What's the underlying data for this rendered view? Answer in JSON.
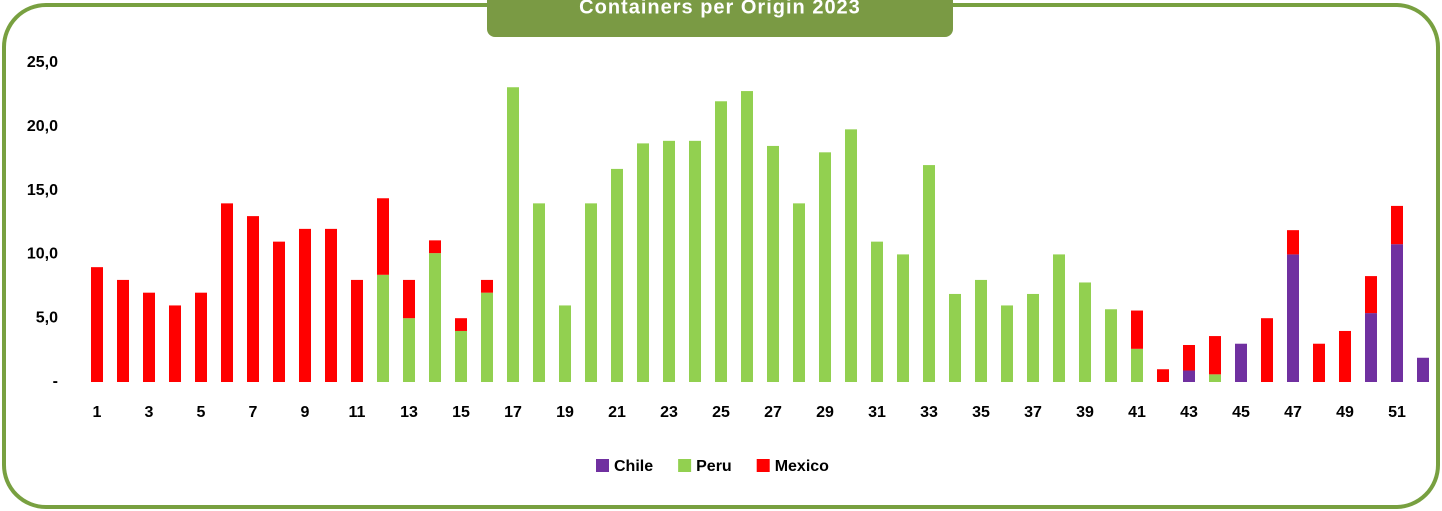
{
  "chart_data": {
    "type": "bar",
    "stacked": true,
    "title": "Containers per Origin 2023",
    "categories": [
      1,
      null,
      3,
      null,
      5,
      null,
      7,
      null,
      9,
      null,
      11,
      null,
      13,
      null,
      15,
      null,
      17,
      null,
      19,
      null,
      21,
      null,
      23,
      null,
      25,
      null,
      27,
      null,
      29,
      null,
      31,
      null,
      33,
      null,
      35,
      null,
      37,
      null,
      39,
      null,
      41,
      null,
      43,
      null,
      45,
      null,
      47,
      null,
      49,
      null,
      51,
      null
    ],
    "series": [
      {
        "name": "Chile",
        "color": "#7030a0",
        "values": [
          0,
          0,
          0,
          0,
          0,
          0,
          0,
          0,
          0,
          0,
          0,
          0,
          0,
          0,
          0,
          0,
          0,
          0,
          0,
          0,
          0,
          0,
          0,
          0,
          0,
          0,
          0,
          0,
          0,
          0,
          0,
          0,
          0,
          0,
          0,
          0,
          0,
          0,
          0,
          0,
          0,
          0,
          0.9,
          0,
          3,
          0,
          10,
          0,
          0,
          5.4,
          10.8,
          1.9
        ]
      },
      {
        "name": "Peru",
        "color": "#92d050",
        "values": [
          0,
          0,
          0,
          0,
          0,
          0,
          0,
          0,
          0,
          0,
          0,
          8.4,
          5,
          10.1,
          4,
          7,
          23.1,
          14,
          6,
          14,
          16.7,
          18.7,
          18.9,
          18.9,
          22,
          22.8,
          18.5,
          14,
          18,
          19.8,
          11,
          10,
          17,
          6.9,
          8,
          6,
          6.9,
          10,
          7.8,
          5.7,
          2.6,
          0,
          0,
          0.6,
          0,
          0,
          0,
          0,
          0,
          0,
          0,
          0
        ]
      },
      {
        "name": "Mexico",
        "color": "#ff0000",
        "values": [
          9,
          8,
          7,
          6,
          7,
          14,
          13,
          11,
          12,
          12,
          8,
          6,
          3,
          1,
          1,
          1,
          0,
          0,
          0,
          0,
          0,
          0,
          0,
          0,
          0,
          0,
          0,
          0,
          0,
          0,
          0,
          0,
          0,
          0,
          0,
          0,
          0,
          0,
          0,
          0,
          3,
          1,
          2,
          3,
          0,
          5,
          1.9,
          3,
          4,
          2.9,
          3,
          0
        ]
      }
    ],
    "ylim": [
      0,
      25
    ],
    "yticks": [
      {
        "value": 0,
        "label": "-"
      },
      {
        "value": 5,
        "label": "5,0"
      },
      {
        "value": 10,
        "label": "10,0"
      },
      {
        "value": 15,
        "label": "15,0"
      },
      {
        "value": 20,
        "label": "20,0"
      },
      {
        "value": 25,
        "label": "25,0"
      }
    ],
    "legend": "bottom",
    "grid": false
  }
}
